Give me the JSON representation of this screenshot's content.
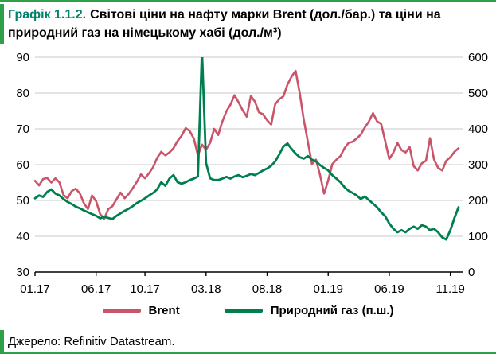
{
  "title": {
    "prefix": "Графік 1.1.2.",
    "rest": "Світові ціни на нафту марки Brent (дол./бар.) та ціни на природний газ на німецькому хабі (дол./м³)"
  },
  "source": {
    "text": "Джерело: Refinitiv Datastream."
  },
  "colors": {
    "accent_green": "#2fa04a",
    "title_teal": "#00836c",
    "grid": "#c8c8c8",
    "axis": "#000000",
    "brent": "#ca5469",
    "gas": "#007f4e"
  },
  "chart_data": {
    "type": "line",
    "title": "Світові ціни на нафту марки Brent (дол./бар.) та ціни на природний газ на німецькому хабі (дол./м³)",
    "x_unit": "months since 2017-01 (01.17 = 0)",
    "x_start": 0,
    "x_step": 0.33333,
    "x_range": [
      0,
      35
    ],
    "x_ticks": [
      {
        "t": 0,
        "label": "01.17"
      },
      {
        "t": 5,
        "label": "06.17"
      },
      {
        "t": 9,
        "label": "10.17"
      },
      {
        "t": 14,
        "label": "03.18"
      },
      {
        "t": 19,
        "label": "08.18"
      },
      {
        "t": 24,
        "label": "01.19"
      },
      {
        "t": 29,
        "label": "06.19"
      },
      {
        "t": 34,
        "label": "11.19"
      }
    ],
    "left_axis": {
      "min": 30,
      "max": 90,
      "ticks": [
        30,
        40,
        50,
        60,
        70,
        80,
        90
      ]
    },
    "right_axis": {
      "min": 0,
      "max": 600,
      "ticks": [
        0,
        100,
        200,
        300,
        400,
        500,
        600
      ]
    },
    "grid": true,
    "legend_position": "bottom",
    "series": [
      {
        "name": "Brent",
        "axis": "left",
        "color": "#ca5469",
        "width": 2.6,
        "values": [
          55.5,
          54.2,
          56.0,
          56.3,
          55.0,
          56.2,
          55.0,
          51.5,
          50.6,
          52.6,
          53.3,
          52.0,
          49.2,
          47.6,
          51.4,
          49.8,
          46.2,
          44.9,
          47.6,
          48.4,
          50.3,
          52.2,
          50.6,
          51.8,
          53.4,
          55.2,
          57.3,
          56.2,
          57.6,
          59.3,
          61.9,
          63.6,
          62.6,
          63.4,
          64.6,
          66.6,
          68.1,
          70.2,
          69.4,
          67.3,
          62.6,
          65.6,
          64.2,
          66.1,
          70.0,
          68.3,
          72.1,
          74.9,
          76.8,
          79.4,
          77.4,
          75.2,
          73.4,
          79.2,
          77.6,
          74.6,
          74.1,
          72.4,
          71.2,
          76.9,
          78.3,
          79.1,
          82.4,
          84.6,
          86.2,
          80.1,
          72.6,
          66.4,
          60.2,
          61.4,
          57.1,
          51.9,
          55.6,
          60.1,
          61.4,
          62.4,
          64.6,
          66.1,
          66.4,
          67.3,
          68.4,
          70.4,
          72.1,
          74.4,
          72.1,
          71.4,
          66.6,
          61.6,
          63.4,
          66.1,
          64.1,
          63.4,
          64.9,
          59.6,
          58.4,
          60.4,
          61.1,
          67.4,
          61.4,
          59.1,
          58.4,
          61.1,
          62.1,
          63.6,
          64.6
        ]
      },
      {
        "name": "Природний газ (п.ш.)",
        "axis": "right",
        "color": "#007f4e",
        "width": 2.8,
        "values": [
          206,
          214,
          210,
          224,
          231,
          219,
          214,
          204,
          196,
          190,
          183,
          178,
          172,
          167,
          162,
          157,
          150,
          154,
          151,
          148,
          157,
          164,
          171,
          177,
          184,
          193,
          199,
          206,
          214,
          221,
          231,
          251,
          241,
          261,
          271,
          251,
          247,
          251,
          257,
          261,
          267,
          620,
          305,
          262,
          257,
          257,
          261,
          266,
          261,
          267,
          271,
          265,
          269,
          274,
          271,
          277,
          284,
          289,
          297,
          309,
          329,
          351,
          359,
          344,
          331,
          321,
          317,
          324,
          314,
          309,
          299,
          291,
          284,
          271,
          261,
          251,
          237,
          227,
          221,
          214,
          204,
          211,
          201,
          191,
          181,
          167,
          156,
          136,
          121,
          111,
          117,
          111,
          121,
          127,
          121,
          131,
          127,
          117,
          121,
          111,
          97,
          91,
          117,
          151,
          181
        ]
      }
    ]
  }
}
